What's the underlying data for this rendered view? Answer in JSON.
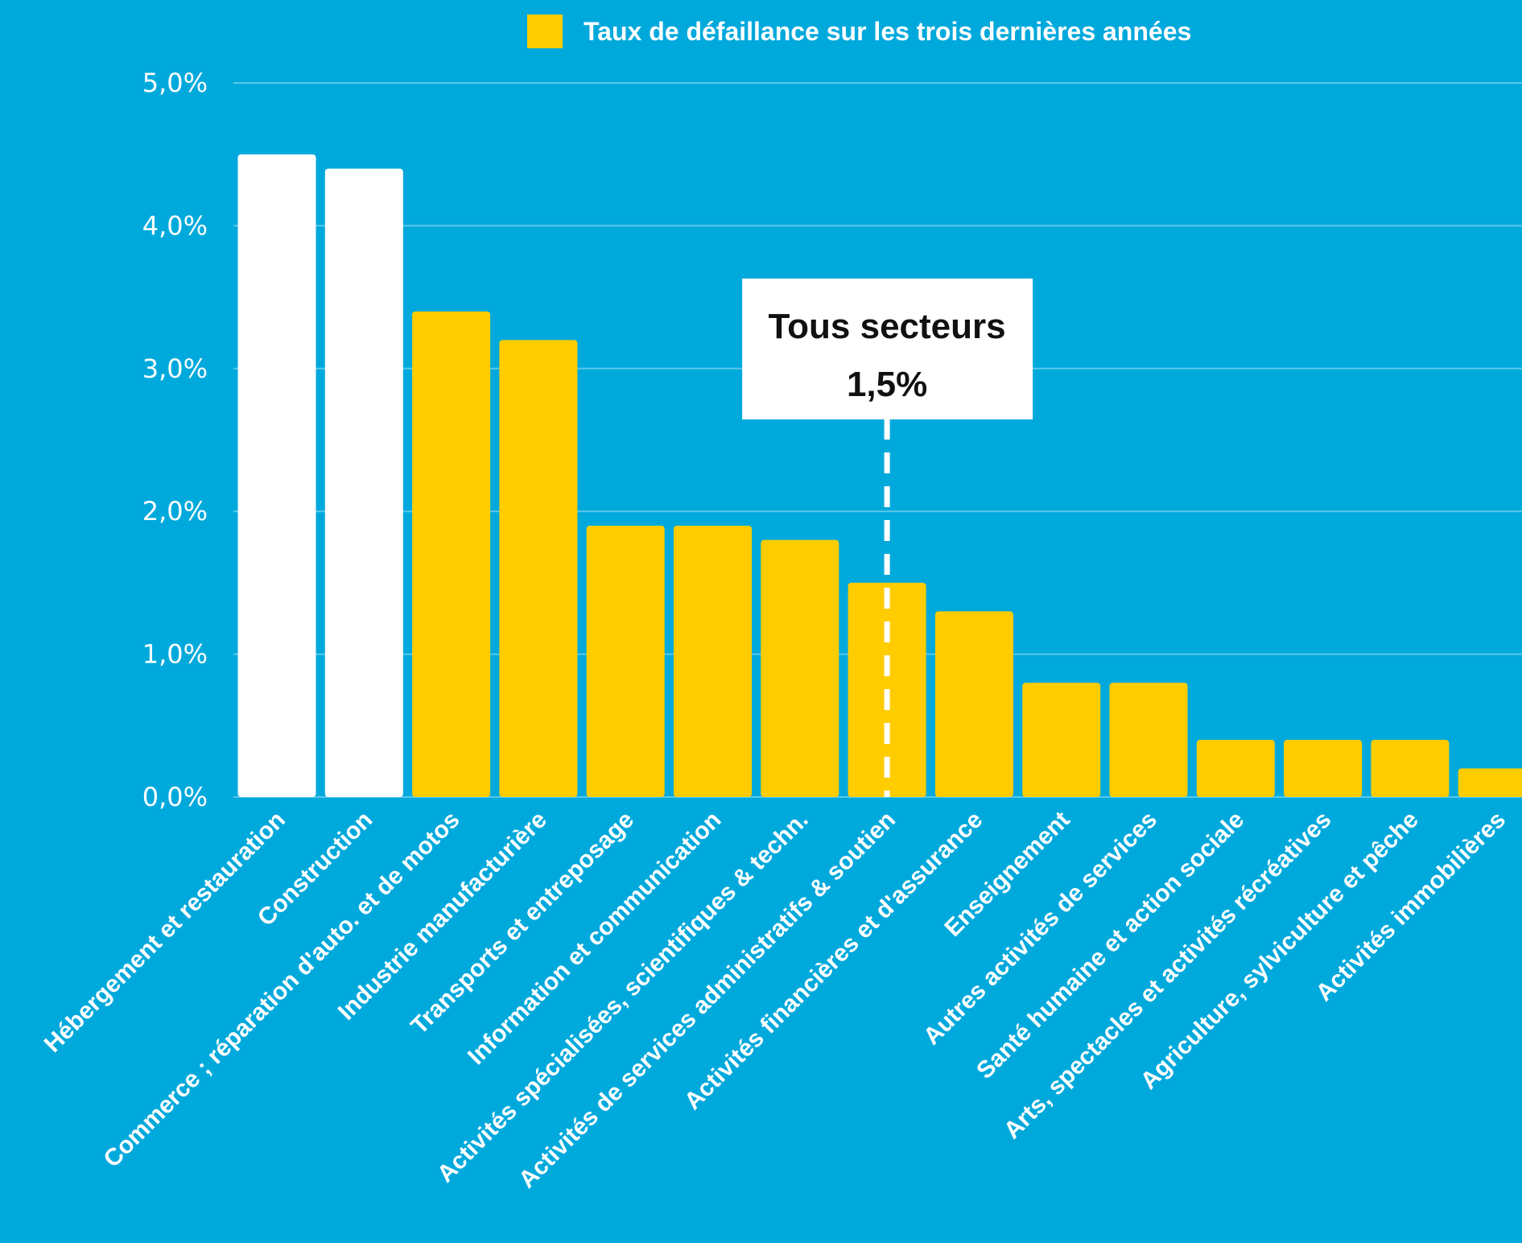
{
  "chart_data": {
    "type": "bar",
    "legend": {
      "label": "Taux de défaillance sur les trois dernières années",
      "placement": "top-center"
    },
    "categories": [
      "Hébergement et restauration",
      "Construction",
      "Commerce ; réparation d'auto. et de motos",
      "Industrie manufacturière",
      "Transports et entreposage",
      "Information et communication",
      "Activités spécialisées, scientifiques & techn.",
      "Activités de services administratifs & soutien",
      "Activités financières et d'assurance",
      "Enseignement",
      "Autres activités de services",
      "Santé humaine et action sociale",
      "Arts, spectacles et activités récréatives",
      "Agriculture, sylviculture et pêche",
      "Activités immobilières"
    ],
    "values": [
      4.5,
      4.4,
      3.4,
      3.2,
      1.9,
      1.9,
      1.8,
      1.5,
      1.3,
      0.8,
      0.8,
      0.4,
      0.4,
      0.4,
      0.2
    ],
    "highlighted_categories": [
      0,
      1
    ],
    "y_ticks": [
      "0,0%",
      "1,0%",
      "2,0%",
      "3,0%",
      "4,0%",
      "5,0%"
    ],
    "ylim": [
      0,
      5
    ],
    "grid": true,
    "annotation": {
      "title": "Tous secteurs",
      "value_label": "1,5%",
      "value": 1.5
    },
    "colors": {
      "background": "#00a9dc",
      "bar": "#ffcc00",
      "bar_highlight": "#ffffff",
      "grid": "#5cc8ea",
      "annotation_box": "#ffffff"
    }
  }
}
